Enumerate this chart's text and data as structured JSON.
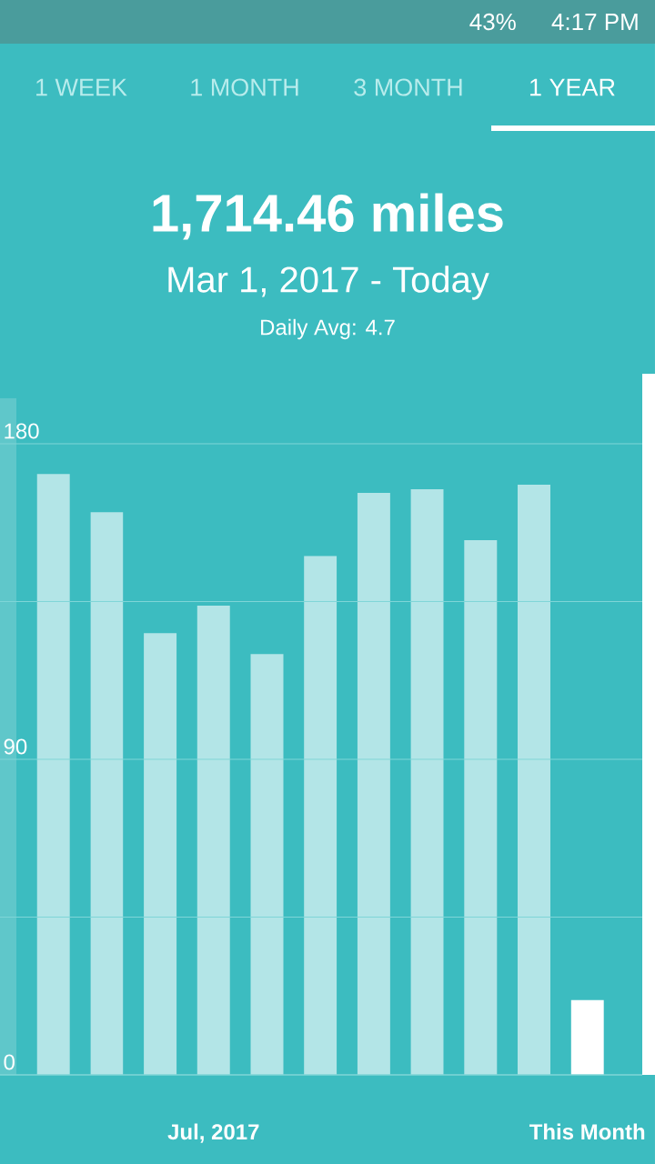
{
  "chart_data": {
    "type": "bar",
    "title": "1,714.46 miles",
    "subtitle": "Mar 1, 2017 - Today",
    "annotations": [
      "Daily Avg: 4.7",
      "1 WEEK",
      "1 MONTH",
      "3 MONTH",
      "1 YEAR",
      "43%",
      "4:17 PM"
    ],
    "categories": [
      null,
      null,
      null,
      null,
      "Jul, 2017",
      null,
      null,
      null,
      null,
      null,
      null,
      "This Month"
    ],
    "values": [
      193,
      171.4,
      160.5,
      126,
      133.8,
      120,
      148,
      166,
      167,
      152.5,
      168.3,
      21.3
    ],
    "colors": [
      "#5fc7ca",
      "#b3e5e7",
      "#b3e5e7",
      "#b3e5e7",
      "#b3e5e7",
      "#b3e5e7",
      "#b3e5e7",
      "#b3e5e7",
      "#b3e5e7",
      "#b3e5e7",
      "#b3e5e7",
      "#ffffff"
    ],
    "ylim": [
      0,
      200
    ],
    "yticks": [
      0,
      {
        "value": 45,
        "label": null
      },
      90,
      {
        "value": 135,
        "label": null
      },
      180
    ],
    "grid": "y"
  }
}
